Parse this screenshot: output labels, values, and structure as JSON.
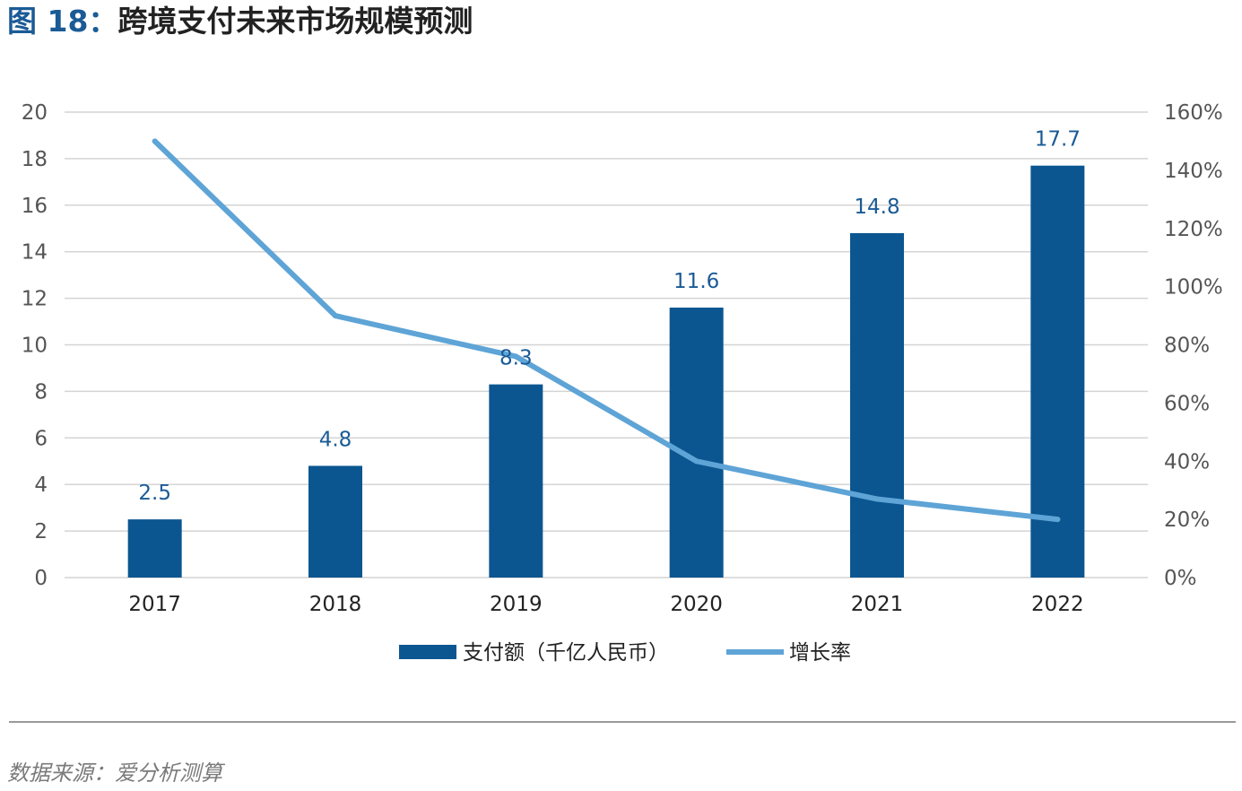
{
  "figure": {
    "title_number": "图 18：",
    "title_text": "跨境支付未来市场规模预测",
    "source": "数据来源：爱分析测算"
  },
  "colors": {
    "bar": "#0b5690",
    "line": "#5ea4d6",
    "grid": "#d4d4d4",
    "label": "#1a5b96"
  },
  "chart_data": {
    "type": "bar",
    "categories": [
      "2017",
      "2018",
      "2019",
      "2020",
      "2021",
      "2022"
    ],
    "series": [
      {
        "name": "支付额（千亿人民币）",
        "type": "bar",
        "axis": "left",
        "values": [
          2.5,
          4.8,
          8.3,
          11.6,
          14.8,
          17.7
        ],
        "data_labels": [
          "2.5",
          "4.8",
          "8.3",
          "11.6",
          "14.8",
          "17.7"
        ]
      },
      {
        "name": "增长率",
        "type": "line",
        "axis": "right",
        "values": [
          150,
          90,
          76,
          40,
          27,
          20
        ]
      }
    ],
    "y_left": {
      "min": 0,
      "max": 20,
      "ticks": [
        "0",
        "2",
        "4",
        "6",
        "8",
        "10",
        "12",
        "14",
        "16",
        "18",
        "20"
      ]
    },
    "y_right": {
      "min": 0,
      "max": 160,
      "unit": "%",
      "ticks": [
        "0%",
        "20%",
        "40%",
        "60%",
        "80%",
        "100%",
        "120%",
        "140%",
        "160%"
      ]
    },
    "grid": true,
    "legend_position": "bottom"
  }
}
